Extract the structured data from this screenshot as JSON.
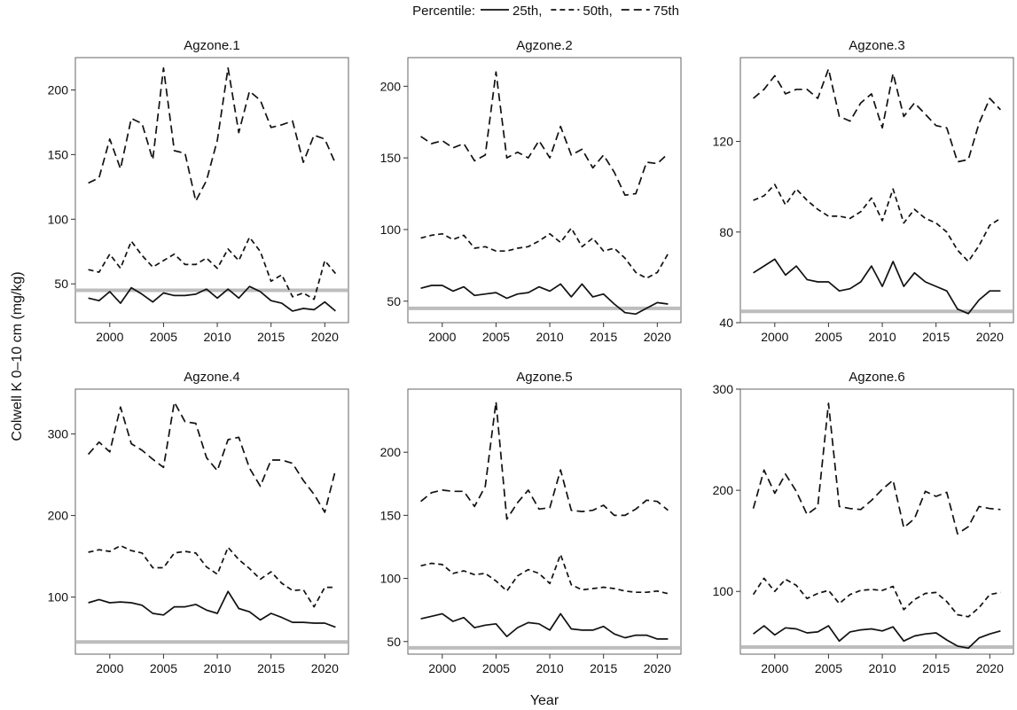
{
  "chart_data": {
    "type": "line",
    "ylabel": "Colwell K 0–10 cm (mg/kg)",
    "xlabel": "Year",
    "legend": {
      "title": "Percentile:",
      "placement": "top-center",
      "entries": [
        {
          "label": "25th,",
          "style": "solid"
        },
        {
          "label": "50th,",
          "style": "dashed"
        },
        {
          "label": "75th",
          "style": "longdash"
        }
      ]
    },
    "reference_line": {
      "y": 45,
      "color": "#bdbdbd"
    },
    "x_ticks": [
      2000,
      2005,
      2010,
      2015,
      2020
    ],
    "x": [
      1998,
      1999,
      2000,
      2001,
      2002,
      2003,
      2004,
      2005,
      2006,
      2007,
      2008,
      2009,
      2010,
      2011,
      2012,
      2013,
      2014,
      2015,
      2016,
      2017,
      2018,
      2019,
      2020,
      2021
    ],
    "panels": [
      {
        "title": "Agzone.1",
        "ylim": [
          20,
          225
        ],
        "yticks": [
          50,
          100,
          150,
          200
        ],
        "series": [
          {
            "style": "solid",
            "values": [
              39,
              37,
              44,
              35,
              47,
              42,
              36,
              43,
              41,
              41,
              42,
              46,
              39,
              46,
              39,
              48,
              44,
              37,
              35,
              29,
              31,
              30,
              36,
              29
            ]
          },
          {
            "style": "dashed",
            "values": [
              61,
              59,
              73,
              62,
              83,
              72,
              63,
              68,
              73,
              65,
              65,
              70,
              62,
              77,
              68,
              86,
              75,
              52,
              57,
              40,
              43,
              38,
              68,
              58
            ]
          },
          {
            "style": "longdash",
            "values": [
              128,
              132,
              162,
              139,
              178,
              174,
              146,
              217,
              153,
              151,
              114,
              130,
              161,
              217,
              167,
              199,
              192,
              171,
              173,
              176,
              144,
              165,
              162,
              143
            ]
          }
        ]
      },
      {
        "title": "Agzone.2",
        "ylim": [
          35,
          220
        ],
        "yticks": [
          50,
          100,
          150,
          200
        ],
        "series": [
          {
            "style": "solid",
            "values": [
              59,
              61,
              61,
              57,
              60,
              54,
              55,
              56,
              52,
              55,
              56,
              60,
              57,
              62,
              53,
              62,
              53,
              55,
              48,
              42,
              41,
              45,
              49,
              48
            ]
          },
          {
            "style": "dashed",
            "values": [
              94,
              96,
              97,
              93,
              96,
              87,
              88,
              85,
              85,
              87,
              88,
              92,
              97,
              91,
              101,
              88,
              94,
              85,
              87,
              80,
              70,
              66,
              70,
              83
            ]
          },
          {
            "style": "longdash",
            "values": [
              165,
              160,
              162,
              157,
              160,
              148,
              152,
              210,
              150,
              154,
              150,
              162,
              150,
              172,
              152,
              156,
              143,
              152,
              140,
              124,
              125,
              147,
              146,
              153
            ]
          }
        ]
      },
      {
        "title": "Agzone.3",
        "ylim": [
          40,
          157
        ],
        "yticks": [
          40,
          80,
          120
        ],
        "series": [
          {
            "style": "solid",
            "values": [
              62,
              65,
              68,
              61,
              65,
              59,
              58,
              58,
              54,
              55,
              58,
              65,
              56,
              67,
              56,
              62,
              58,
              56,
              54,
              46,
              44,
              50,
              54,
              54
            ]
          },
          {
            "style": "dashed",
            "values": [
              94,
              96,
              101,
              92,
              99,
              94,
              90,
              87,
              87,
              86,
              89,
              95,
              85,
              99,
              84,
              90,
              86,
              84,
              80,
              72,
              67,
              74,
              83,
              86
            ]
          },
          {
            "style": "longdash",
            "values": [
              139,
              143,
              149,
              141,
              143,
              143,
              139,
              152,
              131,
              129,
              137,
              141,
              126,
              150,
              131,
              137,
              132,
              127,
              126,
              111,
              112,
              128,
              139,
              134
            ]
          }
        ]
      },
      {
        "title": "Agzone.4",
        "ylim": [
          30,
          355
        ],
        "yticks": [
          100,
          200,
          300
        ],
        "series": [
          {
            "style": "solid",
            "values": [
              93,
              97,
              93,
              94,
              93,
              90,
              80,
              78,
              88,
              88,
              91,
              84,
              80,
              107,
              86,
              82,
              72,
              80,
              75,
              69,
              69,
              68,
              68,
              63
            ]
          },
          {
            "style": "dashed",
            "values": [
              155,
              158,
              156,
              163,
              157,
              154,
              136,
              136,
              154,
              156,
              154,
              137,
              128,
              161,
              146,
              135,
              122,
              131,
              117,
              108,
              109,
              88,
              112,
              112
            ]
          },
          {
            "style": "longdash",
            "values": [
              275,
              290,
              278,
              333,
              288,
              280,
              269,
              259,
              339,
              315,
              313,
              271,
              255,
              293,
              296,
              258,
              236,
              268,
              268,
              264,
              243,
              226,
              204,
              256
            ]
          }
        ]
      },
      {
        "title": "Agzone.5",
        "ylim": [
          40,
          250
        ],
        "yticks": [
          50,
          100,
          150,
          200
        ],
        "series": [
          {
            "style": "solid",
            "values": [
              68,
              70,
              72,
              66,
              69,
              61,
              63,
              64,
              54,
              61,
              65,
              64,
              59,
              72,
              60,
              59,
              59,
              62,
              56,
              53,
              55,
              55,
              52,
              52
            ]
          },
          {
            "style": "dashed",
            "values": [
              110,
              112,
              111,
              104,
              106,
              103,
              104,
              98,
              90,
              102,
              107,
              104,
              96,
              119,
              95,
              91,
              92,
              93,
              92,
              90,
              89,
              89,
              90,
              88
            ]
          },
          {
            "style": "longdash",
            "values": [
              161,
              168,
              170,
              169,
              169,
              157,
              173,
              240,
              147,
              160,
              170,
              155,
              156,
              186,
              154,
              153,
              154,
              158,
              150,
              150,
              155,
              162,
              161,
              154
            ]
          }
        ]
      },
      {
        "title": "Agzone.6",
        "ylim": [
          38,
          300
        ],
        "yticks": [
          100,
          200,
          300
        ],
        "series": [
          {
            "style": "solid",
            "values": [
              58,
              66,
              57,
              64,
              63,
              59,
              60,
              66,
              51,
              60,
              62,
              63,
              61,
              65,
              51,
              56,
              58,
              59,
              52,
              46,
              44,
              54,
              58,
              61
            ]
          },
          {
            "style": "dashed",
            "values": [
              97,
              113,
              100,
              112,
              106,
              93,
              98,
              101,
              88,
              97,
              101,
              102,
              101,
              105,
              82,
              92,
              98,
              99,
              90,
              77,
              75,
              84,
              97,
              99
            ]
          },
          {
            "style": "longdash",
            "values": [
              182,
              220,
              197,
              216,
              199,
              176,
              184,
              286,
              184,
              182,
              181,
              190,
              201,
              210,
              163,
              172,
              199,
              194,
              198,
              157,
              164,
              184,
              182,
              181
            ]
          }
        ]
      }
    ]
  }
}
